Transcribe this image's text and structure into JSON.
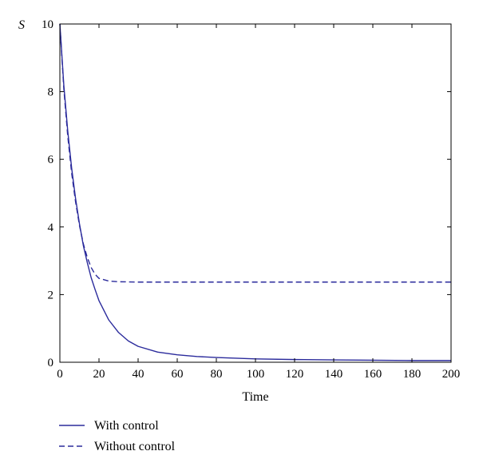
{
  "chart_data": {
    "type": "line",
    "title": "",
    "xlabel": "Time",
    "ylabel": "S",
    "xlim": [
      0,
      200
    ],
    "ylim": [
      0,
      10
    ],
    "xticks": [
      0,
      20,
      40,
      60,
      80,
      100,
      120,
      140,
      160,
      180,
      200
    ],
    "yticks": [
      0,
      2,
      4,
      6,
      8,
      10
    ],
    "grid": false,
    "legend_position": "below",
    "series": [
      {
        "name": "With control",
        "style": "solid",
        "color": "#2b2b9c",
        "x": [
          0,
          2,
          4,
          6,
          8,
          10,
          12,
          14,
          16,
          18,
          20,
          25,
          30,
          35,
          40,
          50,
          60,
          70,
          80,
          90,
          100,
          120,
          140,
          160,
          180,
          200
        ],
        "y": [
          10.0,
          8.2,
          6.85,
          5.75,
          4.85,
          4.1,
          3.45,
          2.95,
          2.5,
          2.15,
          1.82,
          1.25,
          0.88,
          0.63,
          0.47,
          0.3,
          0.22,
          0.17,
          0.14,
          0.12,
          0.1,
          0.08,
          0.07,
          0.06,
          0.05,
          0.05
        ]
      },
      {
        "name": "Without control",
        "style": "dashed",
        "color": "#2b2b9c",
        "x": [
          0,
          2,
          4,
          6,
          8,
          10,
          12,
          14,
          16,
          18,
          20,
          25,
          30,
          40,
          60,
          80,
          100,
          120,
          140,
          160,
          180,
          200
        ],
        "y": [
          10.0,
          8.1,
          6.7,
          5.6,
          4.75,
          4.05,
          3.5,
          3.1,
          2.8,
          2.6,
          2.48,
          2.4,
          2.38,
          2.37,
          2.37,
          2.37,
          2.37,
          2.37,
          2.37,
          2.37,
          2.37,
          2.37
        ]
      }
    ]
  }
}
